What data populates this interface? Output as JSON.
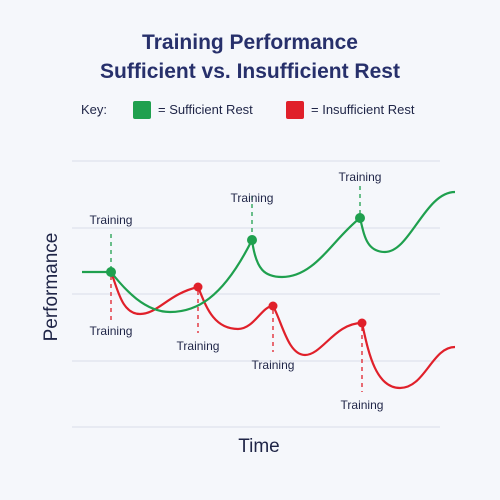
{
  "title_line1": "Training Performance",
  "title_line2": "Sufficient vs. Insufficient Rest",
  "legend": {
    "key_label": "Key:",
    "items": [
      {
        "label": "= Sufficient Rest",
        "color": "#1fa04e"
      },
      {
        "label": "= Insufficient Rest",
        "color": "#e0202a"
      }
    ]
  },
  "chart_data": {
    "type": "line",
    "xlabel": "Time",
    "ylabel": "Performance",
    "grid": true,
    "legend_position": "top",
    "annotation_label": "Training",
    "series": [
      {
        "name": "Sufficient Rest",
        "color": "#1fa04e"
      },
      {
        "name": "Insufficient Rest",
        "color": "#e0202a"
      }
    ]
  }
}
